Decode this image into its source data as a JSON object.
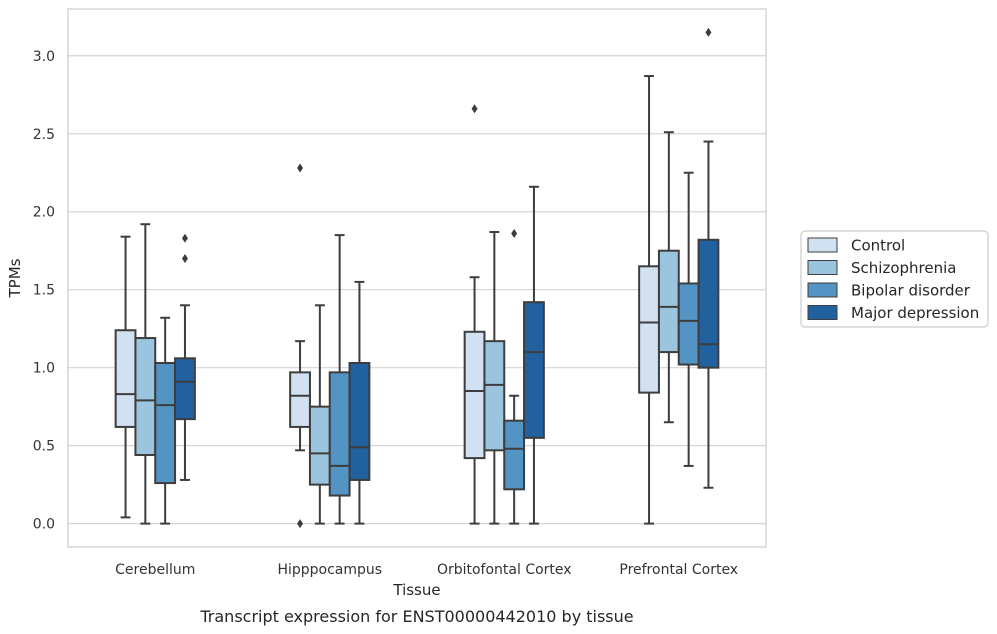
{
  "caption": "Transcript expression for ENST00000442010 by tissue",
  "chart_data": {
    "type": "box",
    "xlabel": "Tissue",
    "ylabel": "TPMs",
    "ylim": [
      -0.15,
      3.3
    ],
    "yticks": [
      "0.0",
      "0.5",
      "1.0",
      "1.5",
      "2.0",
      "2.5",
      "3.0"
    ],
    "categories": [
      "Cerebellum",
      "Hipppocampus",
      "Orbitofontal Cortex",
      "Prefrontal Cortex"
    ],
    "legend_position": "right",
    "series": [
      {
        "name": "Control",
        "color": "#d2e1f1",
        "boxes": [
          {
            "min": 0.04,
            "q1": 0.62,
            "median": 0.83,
            "q3": 1.24,
            "max": 1.84,
            "outliers": []
          },
          {
            "min": 0.47,
            "q1": 0.62,
            "median": 0.82,
            "q3": 0.97,
            "max": 1.17,
            "outliers": [
              0.0,
              2.28
            ]
          },
          {
            "min": 0.0,
            "q1": 0.42,
            "median": 0.85,
            "q3": 1.23,
            "max": 1.58,
            "outliers": [
              2.66
            ]
          },
          {
            "min": 0.0,
            "q1": 0.84,
            "median": 1.29,
            "q3": 1.65,
            "max": 2.87,
            "outliers": []
          }
        ]
      },
      {
        "name": "Schizophrenia",
        "color": "#9bc5de",
        "boxes": [
          {
            "min": 0.0,
            "q1": 0.44,
            "median": 0.79,
            "q3": 1.19,
            "max": 1.92,
            "outliers": []
          },
          {
            "min": 0.0,
            "q1": 0.25,
            "median": 0.45,
            "q3": 0.75,
            "max": 1.4,
            "outliers": []
          },
          {
            "min": 0.0,
            "q1": 0.47,
            "median": 0.89,
            "q3": 1.17,
            "max": 1.87,
            "outliers": []
          },
          {
            "min": 0.65,
            "q1": 1.1,
            "median": 1.39,
            "q3": 1.75,
            "max": 2.51,
            "outliers": []
          }
        ]
      },
      {
        "name": "Bipolar disorder",
        "color": "#5394c4",
        "boxes": [
          {
            "min": 0.0,
            "q1": 0.26,
            "median": 0.76,
            "q3": 1.03,
            "max": 1.32,
            "outliers": []
          },
          {
            "min": 0.0,
            "q1": 0.18,
            "median": 0.37,
            "q3": 0.97,
            "max": 1.85,
            "outliers": []
          },
          {
            "min": 0.0,
            "q1": 0.22,
            "median": 0.48,
            "q3": 0.66,
            "max": 0.82,
            "outliers": [
              1.86
            ]
          },
          {
            "min": 0.37,
            "q1": 1.02,
            "median": 1.3,
            "q3": 1.54,
            "max": 2.25,
            "outliers": []
          }
        ]
      },
      {
        "name": "Major depression",
        "color": "#2261a0",
        "boxes": [
          {
            "min": 0.28,
            "q1": 0.67,
            "median": 0.91,
            "q3": 1.06,
            "max": 1.4,
            "outliers": [
              1.7,
              1.83
            ]
          },
          {
            "min": 0.0,
            "q1": 0.28,
            "median": 0.49,
            "q3": 1.03,
            "max": 1.55,
            "outliers": []
          },
          {
            "min": 0.0,
            "q1": 0.55,
            "median": 1.1,
            "q3": 1.42,
            "max": 2.16,
            "outliers": []
          },
          {
            "min": 0.23,
            "q1": 1.0,
            "median": 1.15,
            "q3": 1.82,
            "max": 2.45,
            "outliers": [
              3.15
            ]
          }
        ]
      }
    ]
  }
}
